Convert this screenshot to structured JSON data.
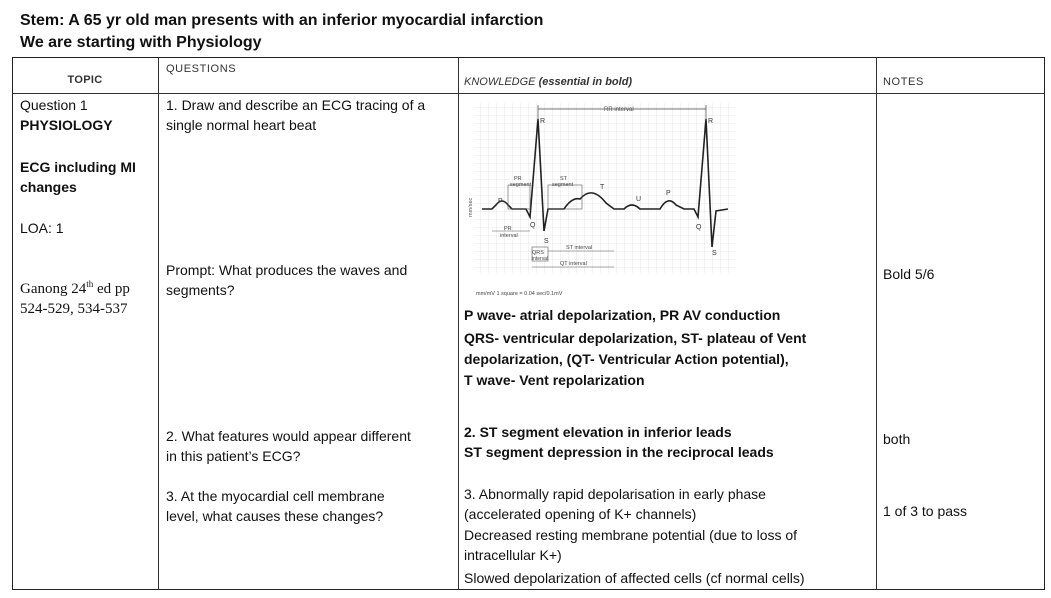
{
  "stem": {
    "line1": "Stem: A 65 yr old man presents with an inferior myocardial infarction",
    "line2": "We are starting with Physiology"
  },
  "headers": {
    "topic": "TOPIC",
    "questions": "QUESTIONS",
    "knowledge_prefix": "KNOWLEDGE",
    "knowledge_suffix": "(essential in bold)",
    "notes": "NOTES"
  },
  "topic": {
    "question": "Question 1",
    "subject": "PHYSIOLOGY",
    "focus_line1": "ECG including MI",
    "focus_line2": "changes",
    "loa": "LOA: 1",
    "reference_prefix": "Ganong 24",
    "reference_sup": "th",
    "reference_suffix": " ed pp",
    "reference_line2": "524-529, 534-537"
  },
  "questions": {
    "q1_line1": "1. Draw and describe an ECG tracing of a",
    "q1_line2": "single normal heart beat",
    "prompt_line1": "Prompt: What produces the waves and",
    "prompt_line2": "segments?",
    "q2_line1": "2. What features would appear different",
    "q2_line2": "in this patient’s ECG?",
    "q3_line1": "3. At the myocardial cell membrane",
    "q3_line2": "level, what causes these changes?"
  },
  "ecg_labels": {
    "rr": "RR interval",
    "r1": "R",
    "r2": "R",
    "p1": "P",
    "p2": "P",
    "t1": "T",
    "u": "U",
    "q1": "Q",
    "q2": "Q",
    "s1": "S",
    "s2": "S",
    "pr_seg_1": "PR",
    "pr_seg_2": "segment",
    "st_seg_1": "ST",
    "st_seg_2": "segment",
    "pr_int_1": "PR",
    "pr_int_2": "interval",
    "qrs_1": "QRS",
    "qrs_2": "interval",
    "st_int": "ST interval",
    "qt_int": "QT interval",
    "axis": "mm/sec",
    "scale": "mm/mV   1 square = 0.04 sec/0.1mV"
  },
  "knowledge": {
    "k1": "P wave- atrial depolarization, PR AV conduction",
    "k2": "QRS- ventricular depolarization, ST- plateau of Vent",
    "k3": "depolarization, (QT- Ventricular Action potential),",
    "k4": "T wave- Vent repolarization",
    "k5": "2. ST segment elevation in inferior leads",
    "k6": "ST segment depression in the reciprocal leads",
    "k7": "3. Abnormally rapid depolarisation in early phase",
    "k8": "(accelerated opening of K+ channels)",
    "k9": "Decreased resting membrane potential (due to loss of",
    "k10": "intracellular K+)",
    "k11": "Slowed depolarization of affected cells (cf normal cells)"
  },
  "notes": {
    "n1": "Bold 5/6",
    "n2": "both",
    "n3": "1 of 3 to pass"
  }
}
